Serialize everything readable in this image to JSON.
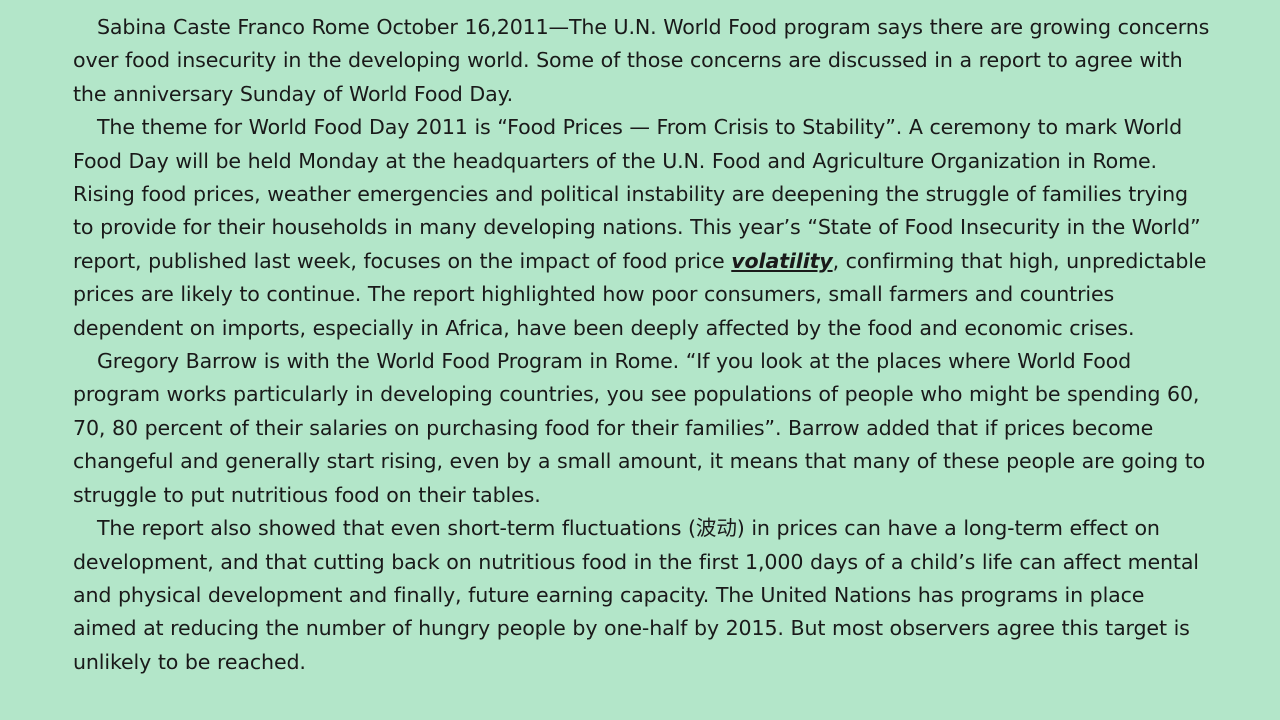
{
  "article": {
    "p1": {
      "text": "Sabina Caste Franco Rome October 16,2011—The U.N. World Food program says there are growing concerns over food insecurity in the developing world. Some of those concerns are discussed in a report to agree with the anniversary Sunday of World Food Day."
    },
    "p2": {
      "before": "The theme for World Food Day 2011 is “Food Prices — From Crisis to Stability”. A ceremony to mark World Food Day will be held Monday at the headquarters of the U.N. Food and Agriculture Organization in Rome. Rising food prices, weather emergencies and political instability are deepening the struggle of families trying to provide for their households in many developing nations. This year’s “State of Food Insecurity in the World” report, published last week, focuses on the impact of food price ",
      "keyword": "volatility",
      "after": ", confirming that high, unpredictable prices are likely to continue. The report highlighted how poor consumers, small farmers and countries dependent on imports, especially in Africa, have been deeply affected by the food and economic crises."
    },
    "p3": {
      "text": "Gregory Barrow is with the World Food Program in Rome. “If you look at the places where World Food program works particularly in developing countries, you see populations of people who might be spending 60, 70, 80 percent of their salaries on purchasing food for their families”. Barrow added that if prices become changeful and generally start rising, even by a small amount, it means that many of these people are going to struggle to put nutritious food on their tables."
    },
    "p4": {
      "text": "The report also showed that even short-term fluctuations (波动) in prices can have a long-term effect on development, and that cutting back on nutritious food in the first 1,000 days of a child’s life can affect mental and physical development and finally, future earning capacity. The United Nations has programs in place aimed at reducing the number of hungry people by one-half by 2015. But most observers agree this target is unlikely to be reached."
    }
  }
}
